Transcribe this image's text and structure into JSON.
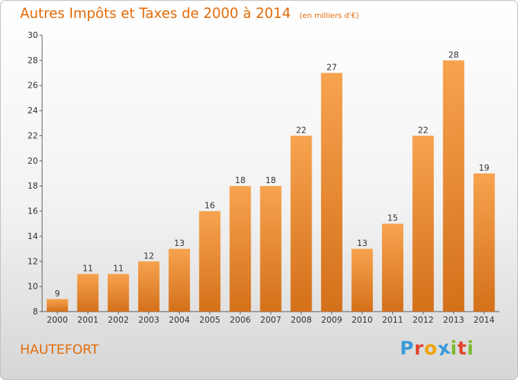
{
  "header": {
    "title": "Autres Impôts et Taxes de 2000 à 2014",
    "subtitle": "(en milliers d'€)"
  },
  "footer": {
    "city": "HAUTEFORT",
    "logo": {
      "letters": [
        "P",
        "r",
        "o",
        "x",
        "i",
        "t",
        "i"
      ],
      "colors": [
        "#3a9ad9",
        "#e3462c",
        "#f0a30a",
        "#3a9ad9",
        "#7ab929",
        "#e3462c",
        "#7ab929"
      ]
    }
  },
  "chart_data": {
    "type": "bar",
    "categories": [
      "2000",
      "2001",
      "2002",
      "2003",
      "2004",
      "2005",
      "2006",
      "2007",
      "2008",
      "2009",
      "2010",
      "2011",
      "2012",
      "2013",
      "2014"
    ],
    "values": [
      9,
      11,
      11,
      12,
      13,
      16,
      18,
      18,
      22,
      27,
      13,
      15,
      22,
      28,
      19
    ],
    "ylim": [
      8,
      30
    ],
    "yticks": [
      8,
      10,
      12,
      14,
      16,
      18,
      20,
      22,
      24,
      26,
      28,
      30
    ],
    "grid": false,
    "bar_color_top": "#f7a34f",
    "bar_color_bottom": "#d4701a"
  }
}
